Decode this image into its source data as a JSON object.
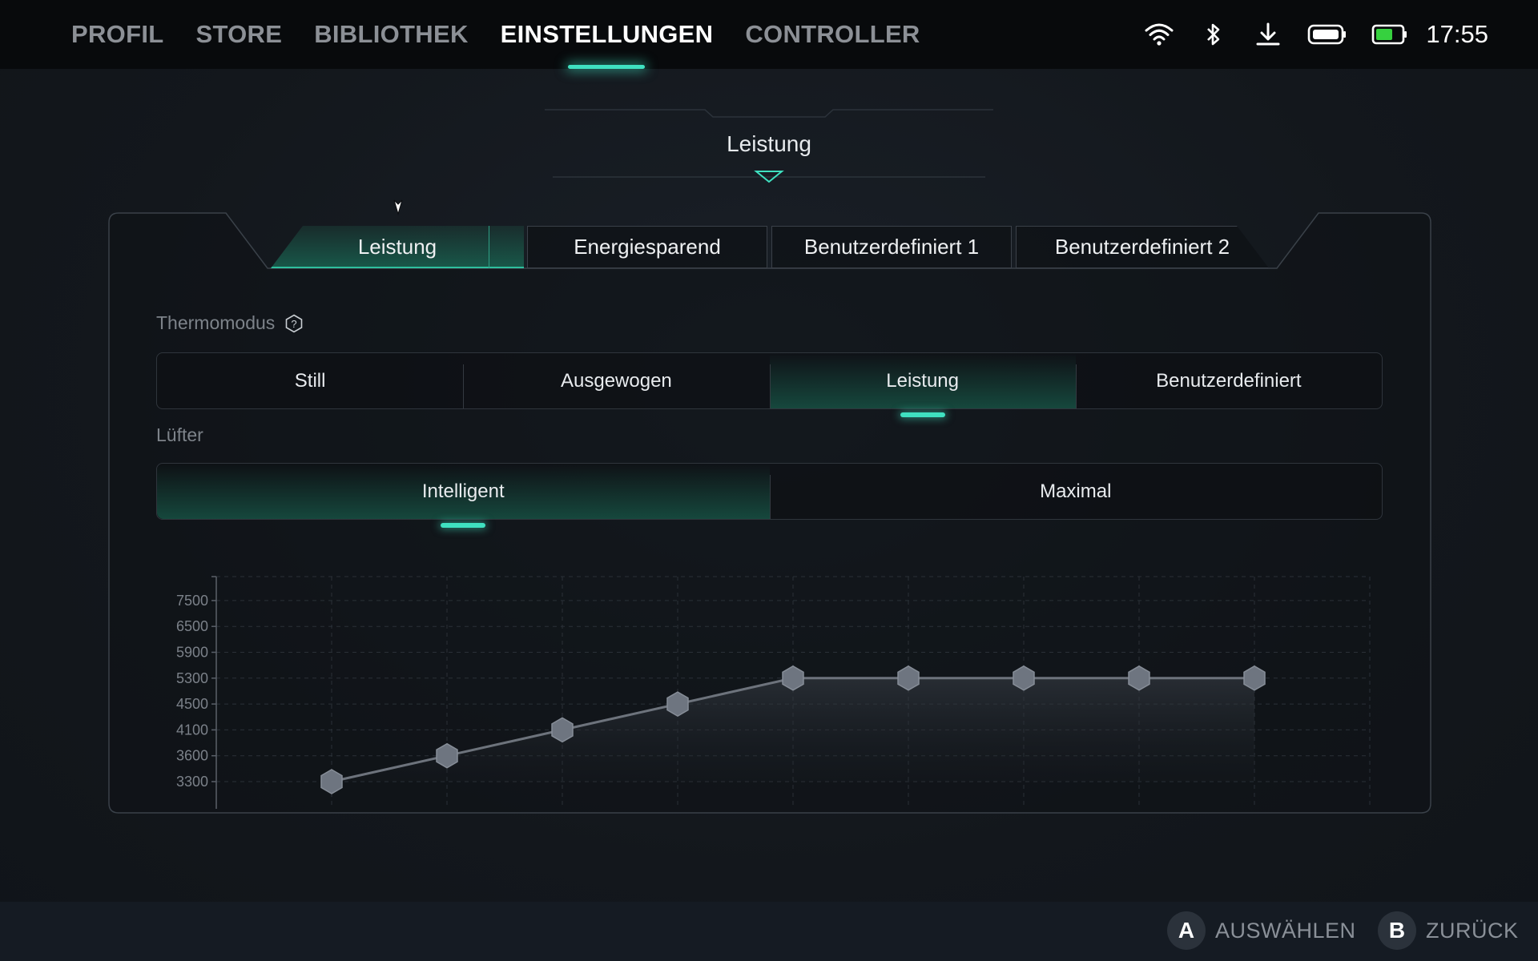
{
  "nav": {
    "items": [
      "PROFIL",
      "STORE",
      "BIBLIOTHEK",
      "EINSTELLUNGEN",
      "CONTROLLER"
    ],
    "active_index": 3
  },
  "status": {
    "icons": [
      "wifi-icon",
      "bluetooth-icon",
      "download-icon",
      "controller-battery-icon",
      "battery-icon"
    ],
    "time": "17:55",
    "battery_color": "#36d13f"
  },
  "section": {
    "title": "Leistung"
  },
  "profile_tabs": {
    "items": [
      "Leistung",
      "Energiesparend",
      "Benutzerdefiniert 1",
      "Benutzerdefiniert 2"
    ],
    "active_index": 0
  },
  "thermal": {
    "label": "Thermomodus",
    "options": [
      "Still",
      "Ausgewogen",
      "Leistung",
      "Benutzerdefiniert"
    ],
    "active_index": 2
  },
  "fan": {
    "label": "Lüfter",
    "options": [
      "Intelligent",
      "Maximal"
    ],
    "active_index": 0
  },
  "chart_data": {
    "type": "line",
    "title": "",
    "xlabel": "",
    "ylabel": "",
    "y_ticks": [
      3300,
      3600,
      4100,
      4500,
      5300,
      5900,
      6500,
      7500
    ],
    "x": [
      1,
      2,
      3,
      4,
      5,
      6,
      7,
      8,
      9
    ],
    "series": [
      {
        "values": [
          3300,
          3600,
          4100,
          4500,
          5300,
          5300,
          5300,
          5300,
          5300
        ]
      }
    ],
    "grid": true,
    "accent": "#3fe0c0"
  },
  "footer": {
    "hints": [
      {
        "button": "A",
        "label": "AUSWÄHLEN"
      },
      {
        "button": "B",
        "label": "ZURÜCK"
      }
    ]
  }
}
